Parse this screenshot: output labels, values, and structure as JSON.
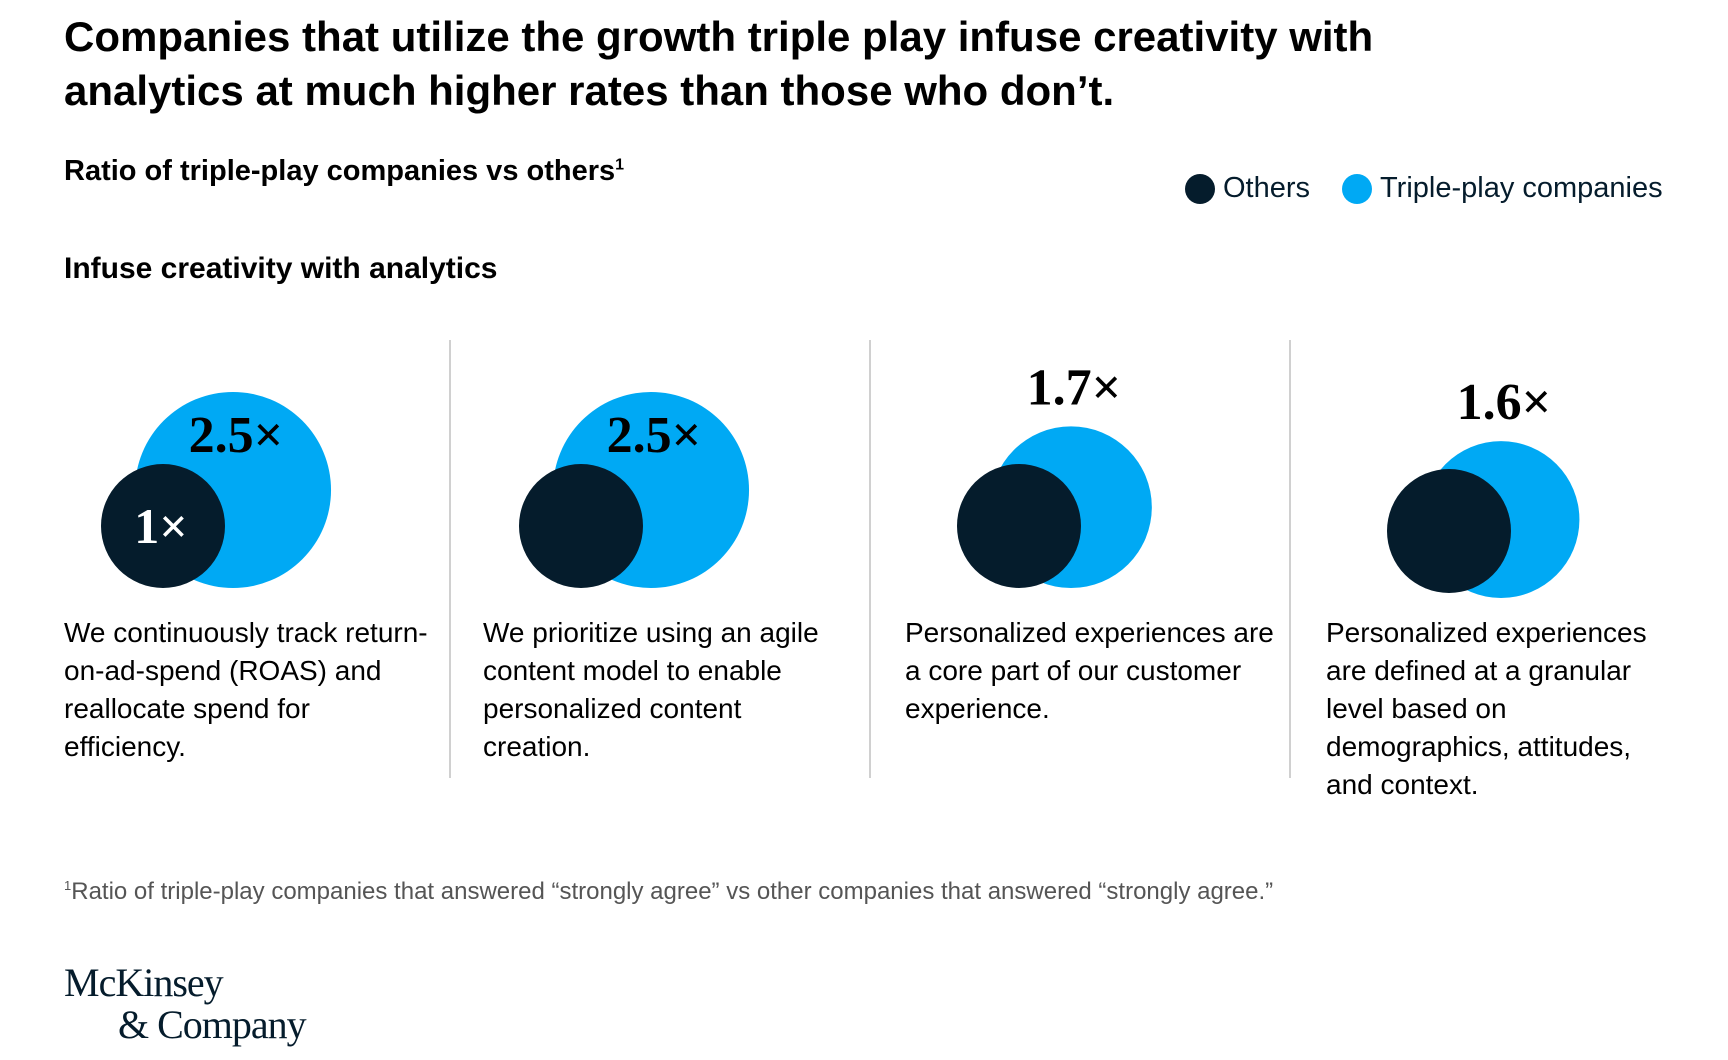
{
  "title": "Companies that utilize the growth triple play infuse creativity with analytics at much higher rates than those who don’t.",
  "subtitle": "Ratio of triple-play companies vs others",
  "subtitle_footnote_mark": "1",
  "section_title": "Infuse creativity with analytics",
  "legend": [
    {
      "label": "Others",
      "color": "#051c2c"
    },
    {
      "label": "Triple-play companies",
      "color": "#00a9f4"
    }
  ],
  "chart_data": {
    "type": "bubble-comparison",
    "baseline_label": "1×",
    "baseline_value": 1,
    "series": [
      {
        "name": "Others",
        "color": "#051c2c"
      },
      {
        "name": "Triple-play companies",
        "color": "#00a9f4"
      }
    ],
    "items": [
      {
        "label": "2.5×",
        "value": 2.5,
        "description": "We continuously track return-on-ad-spend (ROAS) and reallocate spend for efficiency."
      },
      {
        "label": "2.5×",
        "value": 2.5,
        "description": "We prioritize using an agile content model to enable personalized content creation."
      },
      {
        "label": "1.7×",
        "value": 1.7,
        "description": "Personalized experiences are a core part of our customer experience."
      },
      {
        "label": "1.6×",
        "value": 1.6,
        "description": "Personalized experiences are defined at a granular level based on demographics, attitudes, and context."
      }
    ]
  },
  "footnote_mark": "1",
  "footnote": "Ratio of triple-play companies that answered “strongly agree” vs other companies that answered “strongly agree.”",
  "logo": {
    "line1": "McKinsey",
    "line2": "& Company"
  }
}
